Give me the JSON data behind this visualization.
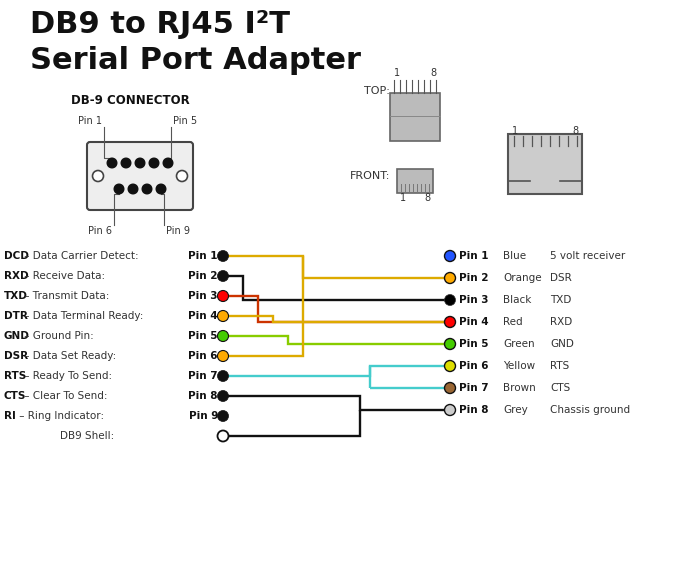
{
  "title_line1": "DB9 to RJ45 I²T",
  "title_line2": "Serial Port Adapter",
  "bg_color": "#ffffff",
  "db9_label": "DB-9 CONNECTOR",
  "left_pins": [
    {
      "pin": "Pin 1",
      "label": "DCD",
      "desc": "Data Carrier Detect",
      "dot_color": "#000000"
    },
    {
      "pin": "Pin 2",
      "label": "RXD",
      "desc": "Receive Data",
      "dot_color": "#000000"
    },
    {
      "pin": "Pin 3",
      "label": "TXD",
      "desc": "Transmit Data",
      "dot_color": "#ff0000"
    },
    {
      "pin": "Pin 4",
      "label": "DTR",
      "desc": "Data Terminal Ready",
      "dot_color": "#ffaa00"
    },
    {
      "pin": "Pin 5",
      "label": "GND",
      "desc": "Ground Pin",
      "dot_color": "#44cc00"
    },
    {
      "pin": "Pin 6",
      "label": "DSR",
      "desc": "Data Set Ready",
      "dot_color": "#ffaa00"
    },
    {
      "pin": "Pin 7",
      "label": "RTS",
      "desc": "Ready To Send",
      "dot_color": "#000000"
    },
    {
      "pin": "Pin 8",
      "label": "CTS",
      "desc": "Clear To Send",
      "dot_color": "#000000"
    },
    {
      "pin": "Pin 9",
      "label": "RI",
      "desc": "Ring Indicator",
      "dot_color": "#000000"
    },
    {
      "pin": "",
      "label": "",
      "desc": "DB9 Shell",
      "dot_color": "#ffffff"
    }
  ],
  "right_pins": [
    {
      "pin": "Pin 1",
      "color_name": "Blue",
      "func": "5 volt receiver",
      "dot_color": "#2255ff",
      "dot_outline": true
    },
    {
      "pin": "Pin 2",
      "color_name": "Orange",
      "func": "DSR",
      "dot_color": "#ffaa00",
      "dot_outline": true
    },
    {
      "pin": "Pin 3",
      "color_name": "Black",
      "func": "TXD",
      "dot_color": "#000000",
      "dot_outline": false
    },
    {
      "pin": "Pin 4",
      "color_name": "Red",
      "func": "RXD",
      "dot_color": "#ff0000",
      "dot_outline": true
    },
    {
      "pin": "Pin 5",
      "color_name": "Green",
      "func": "GND",
      "dot_color": "#44cc00",
      "dot_outline": true
    },
    {
      "pin": "Pin 6",
      "color_name": "Yellow",
      "func": "RTS",
      "dot_color": "#dddd00",
      "dot_outline": true
    },
    {
      "pin": "Pin 7",
      "color_name": "Brown",
      "func": "CTS",
      "dot_color": "#996633",
      "dot_outline": true
    },
    {
      "pin": "Pin 8",
      "color_name": "Grey",
      "func": "Chassis ground",
      "dot_color": "#cccccc",
      "dot_outline": true
    }
  ],
  "wire_color_orange": "#ddaa00",
  "wire_color_black": "#111111",
  "wire_color_red": "#cc3300",
  "wire_color_green": "#88cc00",
  "wire_color_cyan": "#44cccc"
}
